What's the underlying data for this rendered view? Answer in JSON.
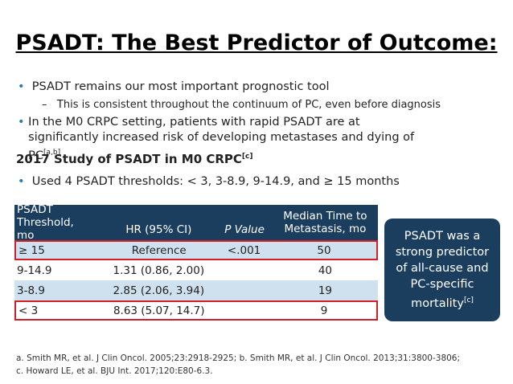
{
  "title": "PSADT: The Best Predictor of Outcome:",
  "bullets": [
    {
      "text": "PSADT remains our most important prognostic tool"
    },
    {
      "text": "This is consistent throughout the continuum of PC, even before diagnosis"
    },
    {
      "text": "In the M0 CRPC setting, patients with rapid PSADT are at significantly increased risk of developing metastases and dying of PC",
      "sup": "[a,b]"
    }
  ],
  "subheading": {
    "text": "2017 Study of PSADT in M0 CRPC",
    "sup": "[c]"
  },
  "bullet_after": "Used 4 PSADT thresholds: < 3, 3-8.9, 9-14.9, and ≥ 15 months",
  "table": {
    "header": [
      "PSADT Threshold, mo",
      "HR (95% CI)",
      "P Value",
      "Median Time to Metastasis, mo"
    ],
    "rows": [
      [
        "≥ 15",
        "Reference",
        "<.001",
        "50"
      ],
      [
        "9-14.9",
        "1.31 (0.86, 2.00)",
        "",
        "40"
      ],
      [
        "3-8.9",
        "2.85 (2.06, 3.94)",
        "",
        "19"
      ],
      [
        "< 3",
        "8.63 (5.07, 14.7)",
        "",
        "9"
      ]
    ]
  },
  "callout": {
    "text": "PSADT was a strong predictor of all-cause and PC-specific mortality",
    "sup": "[c]"
  },
  "footnotes": [
    "a. Smith MR, et al. J Clin Oncol. 2005;23:2918-2925; b. Smith MR, et al. J Clin Oncol. 2013;31:3800-3806;",
    "c. Howard LE, et al. BJU Int. 2017;120:E80-6.3."
  ]
}
